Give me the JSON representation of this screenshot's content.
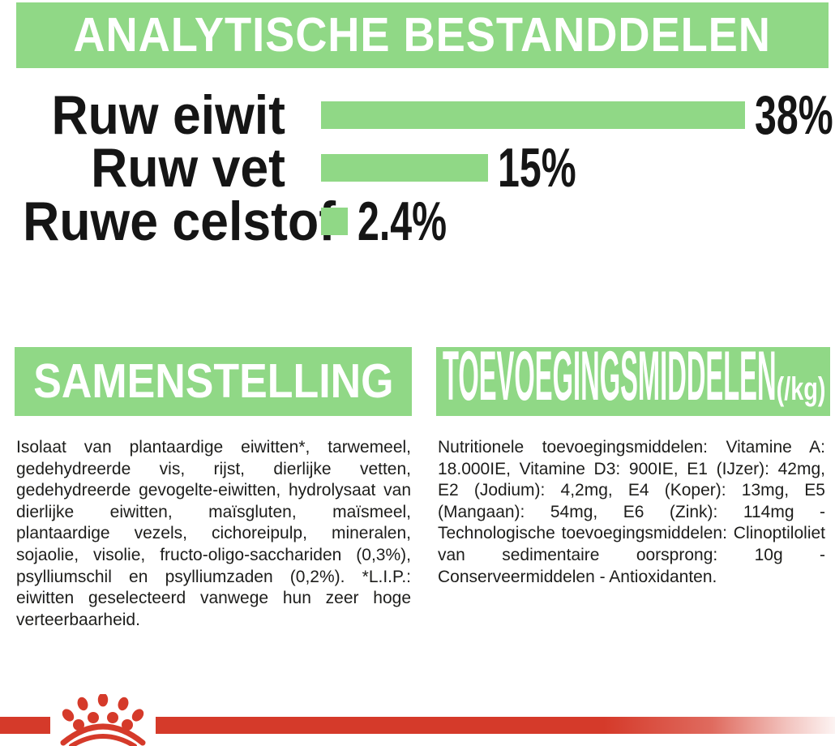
{
  "colors": {
    "green": "#90D886",
    "red": "#D53A2A",
    "text": "#1D1D1B",
    "header_text": "#FFFFFF"
  },
  "header": {
    "title": "ANALYTISCHE BESTANDDELEN"
  },
  "chart_data": {
    "type": "bar",
    "orientation": "horizontal",
    "title": "ANALYTISCHE BESTANDDELEN",
    "categories": [
      "Ruw eiwit",
      "Ruw vet",
      "Ruwe celstof"
    ],
    "values": [
      38,
      15,
      2.4
    ],
    "value_labels": [
      "38%",
      "15%",
      "2.4%"
    ],
    "xlim": [
      0,
      38
    ],
    "bar_color": "#90D886",
    "grid": false,
    "legend": false
  },
  "sections": {
    "samenstelling": {
      "title": "SAMENSTELLING",
      "body": "Isolaat van plantaardige eiwitten*, tarwemeel, gedehydreerde vis, rijst, dierlijke vetten, gedehydreerde gevogelte-eiwitten, hydrolysaat van dierlijke eiwitten, maïsgluten, maïsmeel, plantaardige vezels, cichoreipulp, mineralen, sojaolie, visolie, fructo-oligo-sacchariden (0,3%), psylliumschil en psylliumzaden (0,2%). *L.I.P.: eiwitten geselecteerd vanwege hun zeer hoge verteerbaarheid."
    },
    "toevoegingsmiddelen": {
      "title": "TOEVOEGINGSMIDDELEN",
      "unit": "(/kg)",
      "body": "Nutritionele toevoegingsmiddelen: Vitamine A: 18.000IE, Vitamine D3: 900IE, E1 (IJzer): 42mg, E2 (Jodium): 4,2mg, E4 (Koper): 13mg, E5 (Mangaan): 54mg, E6 (Zink): 114mg - Technologische toevoegingsmiddelen: Clinoptiloliet van sedimentaire oorsprong: 10g - Conserveermiddelen - Antioxidanten."
    }
  },
  "footer": {
    "logo": "royal-canin-crown-logo"
  }
}
